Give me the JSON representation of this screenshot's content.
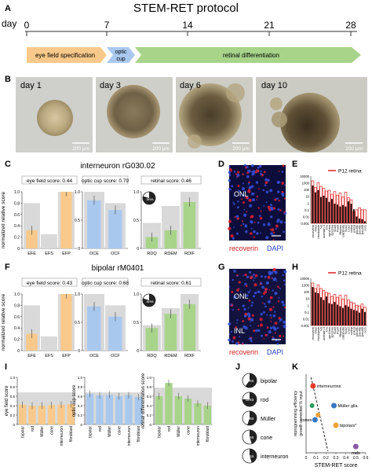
{
  "panelA": {
    "letter": "A",
    "title": "STEM-RET protocol",
    "day_label": "day",
    "ticks": [
      "0",
      "7",
      "14",
      "21",
      "28"
    ],
    "stages": [
      "eye field specification",
      "optic cup",
      "retinal differentiation"
    ],
    "colors": {
      "efs": "#f8c98a",
      "oc": "#a9c8ee",
      "rd": "#a8d48a"
    }
  },
  "panelB": {
    "letter": "B",
    "images": [
      {
        "label": "day 1",
        "scale": "200 μm"
      },
      {
        "label": "day 3",
        "scale": "200 μm"
      },
      {
        "label": "day 6",
        "scale": "200 μm"
      },
      {
        "label": "day 10",
        "scale": "200 μm"
      }
    ]
  },
  "panelC": {
    "letter": "C",
    "title": "interneuron rG030.02",
    "ylabel": "normalized relative score",
    "groups": [
      {
        "score": "eye field score: 0.44",
        "color": "#f8c98a",
        "bars": [
          {
            "label": "EFE",
            "value": 0.32,
            "bg": 0.8
          },
          {
            "label": "EFS",
            "value": 0.0,
            "bg": 0.25
          },
          {
            "label": "EFP",
            "value": 1.0,
            "bg": 1.0
          }
        ]
      },
      {
        "score": "optic cup score: 0.79",
        "color": "#a9c8ee",
        "bars": [
          {
            "label": "OCE",
            "value": 0.85,
            "bg": 1.0
          },
          {
            "label": "OCF",
            "value": 0.68,
            "bg": 0.8
          }
        ]
      },
      {
        "score": "retinal score: 0.46",
        "color": "#a8d48a",
        "bars": [
          {
            "label": "RDQ",
            "value": 0.2,
            "bg": 0.45
          },
          {
            "label": "RDEM",
            "value": 0.32,
            "bg": 0.75
          },
          {
            "label": "RDIF",
            "value": 0.82,
            "bg": 1.0
          }
        ]
      }
    ],
    "ticks": [
      "0",
      "0.2",
      "0.4",
      "0.6",
      "0.8",
      "1.0"
    ],
    "area_label": "area"
  },
  "panelD": {
    "letter": "D",
    "onl": "ONL",
    "legend": [
      "recoverin",
      "DAPI"
    ]
  },
  "panelE": {
    "letter": "E",
    "legend": "P12 retina",
    "genes": [
      "recoverin",
      "Otx2",
      "rhodopsin",
      "Nrl",
      "arrestin 3",
      "Crx",
      "opn1mw",
      "opn1sw",
      "Sox9",
      "Pax6",
      "Rbpms",
      "calbindin",
      "Sox2",
      "Lhx2",
      "crabp",
      "prkca",
      "pou4f1",
      "pou4f2",
      "pou4f3",
      "ncr1"
    ],
    "bars": [
      400,
      40,
      80,
      8,
      12,
      6,
      1.5,
      4,
      0.8,
      0.6,
      0.3,
      0.5,
      0.3,
      1.8,
      0.8,
      0.12,
      0.01,
      0.005,
      0.004,
      0.002
    ],
    "refs": [
      2000,
      200,
      1000,
      300,
      150,
      60,
      80,
      20,
      50,
      15,
      30,
      8,
      40,
      6,
      3,
      0.05,
      0.1,
      0.2,
      0.1,
      0.1
    ],
    "yticks": [
      "10000",
      "1000",
      "100",
      "10",
      "1",
      "0.1",
      "0.01",
      "0.001"
    ]
  },
  "panelF": {
    "letter": "F",
    "title": "bipolar rM0401",
    "ylabel": "normalized relative score",
    "groups": [
      {
        "score": "eye field score: 0.43",
        "color": "#f8c98a",
        "bars": [
          {
            "label": "EFE",
            "value": 0.3,
            "bg": 0.8
          },
          {
            "label": "EFS",
            "value": 0.0,
            "bg": 0.25
          },
          {
            "label": "EFP",
            "value": 1.0,
            "bg": 1.0
          }
        ]
      },
      {
        "score": "optic cup score: 0.68",
        "color": "#a9c8ee",
        "bars": [
          {
            "label": "OCE",
            "value": 0.78,
            "bg": 1.0
          },
          {
            "label": "OCF",
            "value": 0.6,
            "bg": 0.8
          }
        ]
      },
      {
        "score": "retinal score: 0.61",
        "color": "#a8d48a",
        "bars": [
          {
            "label": "RDQ",
            "value": 0.4,
            "bg": 0.45
          },
          {
            "label": "RDEM",
            "value": 0.65,
            "bg": 0.75
          },
          {
            "label": "RDIF",
            "value": 0.82,
            "bg": 1.0
          }
        ]
      }
    ],
    "ticks": [
      "0",
      "0.2",
      "0.4",
      "0.6",
      "0.8",
      "1.0"
    ],
    "area_label": "area"
  },
  "panelG": {
    "letter": "G",
    "onl": "ONL",
    "inl": "INL",
    "legend": [
      "recoverin",
      "DAPI"
    ]
  },
  "panelH": {
    "letter": "H",
    "legend": "P12 retina",
    "genes": [
      "recoverin",
      "Otx2",
      "rhodopsin",
      "Nrl",
      "arrestin 3",
      "Crx",
      "opn1mw",
      "opn1sw",
      "Sox9",
      "Pax6",
      "Rbpms",
      "calbindin",
      "Sox2",
      "Lhx2",
      "crabp",
      "prkca",
      "pou4f1",
      "pou4f2",
      "pou4f3",
      "ncr1"
    ],
    "bars": [
      500,
      80,
      60,
      15,
      6,
      20,
      2,
      1.5,
      3,
      1.2,
      0.7,
      0.4,
      1,
      0.6,
      0.3,
      0.2,
      0.15,
      0.08,
      0.3,
      0.1
    ],
    "refs": [
      2000,
      300,
      1000,
      300,
      150,
      80,
      60,
      20,
      40,
      15,
      30,
      8,
      30,
      6,
      3,
      2,
      1,
      0.8,
      1.5,
      0.5
    ],
    "yticks": [
      "10000",
      "1000",
      "100",
      "10",
      "1",
      "0.1",
      "0.01",
      "0.001"
    ]
  },
  "panelI": {
    "letter": "I",
    "cats": [
      "bipolar",
      "rod",
      "Müller",
      "cone",
      "interneuron",
      "fibroblast"
    ],
    "plots": [
      {
        "ylabel": "eye field score",
        "color": "#f8c98a",
        "values": [
          0.42,
          0.4,
          0.4,
          0.41,
          0.42,
          0.43
        ],
        "bg": 0.68
      },
      {
        "ylabel": "optic cup score",
        "color": "#a9c8ee",
        "values": [
          0.65,
          0.62,
          0.63,
          0.6,
          0.62,
          0.58
        ],
        "bg": 0.68
      },
      {
        "ylabel": "retinal differentiation score",
        "color": "#a8d48a",
        "values": [
          0.6,
          0.88,
          0.6,
          0.55,
          0.45,
          0.4
        ],
        "bg": 0.78
      }
    ],
    "ticks": [
      "0",
      "0.2",
      "0.4",
      "0.6",
      "0.8",
      "1.0"
    ]
  },
  "panelJ": {
    "letter": "J",
    "area_label": "area",
    "items": [
      {
        "name": "bipolar",
        "fill": 0.6
      },
      {
        "name": "rod",
        "fill": 0.75
      },
      {
        "name": "Müller",
        "fill": 0.55
      },
      {
        "name": "cone",
        "fill": 0.45
      },
      {
        "name": "interneuron",
        "fill": 0.45
      }
    ]
  },
  "panelK": {
    "letter": "K",
    "ylabel": "reprogramming efficiency growth corrected % input",
    "xlabel": "STEM-RET score",
    "xticks": [
      "0",
      "0.1",
      "0.2",
      "0.3",
      "0.4",
      "0.5",
      "0.6"
    ],
    "points": [
      {
        "name": "interneurons",
        "x": 0.07,
        "y": 85,
        "color": "#e63b2e"
      },
      {
        "name": "cones",
        "x": 0.09,
        "y": 42,
        "color": "#3a78c4"
      },
      {
        "name": "Müller glia",
        "x": 0.28,
        "y": 60,
        "color": "#3a78c4"
      },
      {
        "name": "bipolars*",
        "x": 0.3,
        "y": 35,
        "color": "#f0a23a"
      },
      {
        "name": "rods",
        "x": 0.5,
        "y": 8,
        "color": "#8b5aa8"
      }
    ],
    "extra_points": [
      {
        "x": 0.06,
        "y": 60,
        "color": "#2a9d5c"
      },
      {
        "x": 0.12,
        "y": 48,
        "color": "#f0a23a"
      }
    ]
  }
}
